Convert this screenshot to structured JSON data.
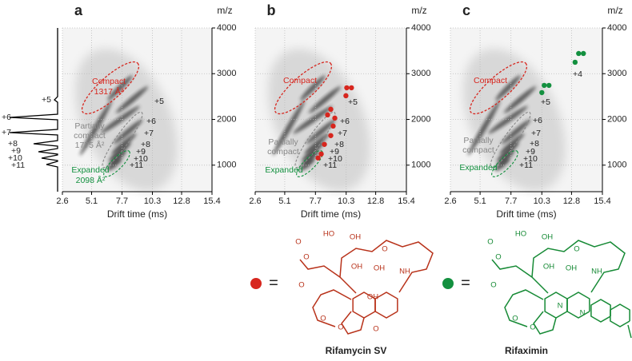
{
  "chart_data": [
    {
      "type": "scatter",
      "title": "a",
      "xlabel": "Drift time (ms)",
      "ylabel": "m/z",
      "y_axis_side": "right",
      "grid": true,
      "xlim": [
        2.6,
        15.4
      ],
      "xticks": [
        2.6,
        5.1,
        7.7,
        10.3,
        12.8,
        15.4
      ],
      "ylim": [
        420,
        4000
      ],
      "yticks": [
        1000,
        2000,
        3000,
        4000
      ],
      "annotations": [
        "Compact",
        "1317 Å²",
        "+5",
        "+6",
        "+7",
        "+8",
        "+9",
        "+10",
        "+11",
        "Partially",
        "compact",
        "1775 Å²",
        "Expanded",
        "2098 Å²",
        "+5",
        "+6",
        "+7",
        "+8",
        "+9",
        "+10",
        "+11"
      ]
    },
    {
      "type": "scatter",
      "title": "b",
      "xlabel": "Drift time (ms)",
      "ylabel": "m/z",
      "y_axis_side": "right",
      "grid": true,
      "xlim": [
        2.6,
        15.4
      ],
      "xticks": [
        2.6,
        5.1,
        7.7,
        10.3,
        12.8,
        15.4
      ],
      "ylim": [
        420,
        4000
      ],
      "yticks": [
        1000,
        2000,
        3000,
        4000
      ],
      "annotations": [
        "Compact",
        "+5",
        "+6",
        "+7",
        "+8",
        "+9",
        "+10",
        "+11",
        "Partially",
        "compact",
        "Expanded"
      ],
      "series": [
        {
          "color": "#d7261e",
          "x": [
            10.35,
            10.75,
            10.28,
            9.0,
            8.73,
            9.34,
            9.2,
            9.0,
            8.46,
            8.19,
            7.92
          ],
          "y": [
            2692,
            2692,
            2518,
            2221,
            2099,
            2029,
            1855,
            1646,
            1454,
            1244,
            1157
          ]
        }
      ]
    },
    {
      "type": "scatter",
      "title": "c",
      "xlabel": "Drift time (ms)",
      "ylabel": "m/z",
      "y_axis_side": "right",
      "grid": true,
      "xlim": [
        2.6,
        15.4
      ],
      "xticks": [
        2.6,
        5.1,
        7.7,
        10.3,
        12.8,
        15.4
      ],
      "ylim": [
        420,
        4000
      ],
      "yticks": [
        1000,
        2000,
        3000,
        4000
      ],
      "annotations": [
        "Compact",
        "+4",
        "+5",
        "+6",
        "+7",
        "+8",
        "+9",
        "+10",
        "+11",
        "Partially",
        "compact",
        "Expanded"
      ],
      "series": [
        {
          "color": "#13903f",
          "x": [
            13.1,
            13.4,
            13.8,
            10.5,
            10.9,
            10.3
          ],
          "y": [
            3250,
            3442,
            3442,
            2744,
            2744,
            2587
          ]
        }
      ]
    }
  ],
  "structures": [
    {
      "name": "Rifamycin SV",
      "equals": "=",
      "color": "#b8321a",
      "marker_color": "#d7261e",
      "atoms": [
        "O",
        "O",
        "HO",
        "OH",
        "O",
        "O",
        "OH",
        "OH",
        "NH",
        "OH",
        "O",
        "O",
        "O"
      ]
    },
    {
      "name": "Rifaximin",
      "equals": "=",
      "color": "#168a35",
      "marker_color": "#13903f",
      "atoms": [
        "O",
        "O",
        "HO",
        "OH",
        "O",
        "O",
        "OH",
        "OH",
        "NH",
        "O",
        "O",
        "N",
        "N"
      ]
    }
  ]
}
